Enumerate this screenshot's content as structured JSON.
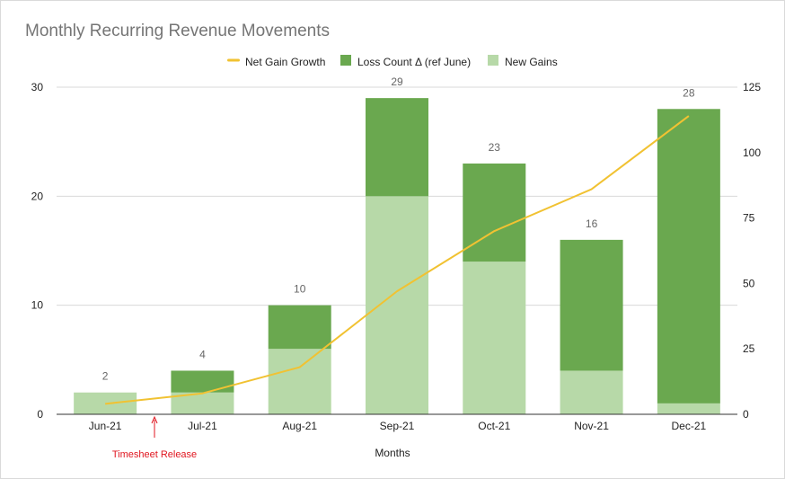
{
  "chart_data": {
    "type": "bar",
    "title": "Monthly Recurring Revenue Movements",
    "xlabel": "Months",
    "ylabel": "",
    "categories": [
      "Jun-21",
      "Jul-21",
      "Aug-21",
      "Sep-21",
      "Oct-21",
      "Nov-21",
      "Dec-21"
    ],
    "stacked": true,
    "ylim": [
      0,
      30
    ],
    "yticks": [
      0,
      10,
      20,
      30
    ],
    "y2lim": [
      0,
      125
    ],
    "y2ticks": [
      0,
      25,
      50,
      75,
      100,
      125
    ],
    "grid": true,
    "legend": "top-center",
    "legend_order": [
      "Net Gain Growth",
      "Loss Count Δ (ref June)",
      "New Gains"
    ],
    "series": [
      {
        "name": "New Gains",
        "type": "bar",
        "axis": "left",
        "color": "#b7d9a8",
        "values": [
          2,
          2,
          6,
          20,
          14,
          4,
          1
        ]
      },
      {
        "name": "Loss Count Δ (ref June)",
        "type": "bar",
        "axis": "left",
        "color": "#6aa84f",
        "values": [
          0,
          2,
          4,
          9,
          9,
          12,
          27
        ]
      },
      {
        "name": "Net Gain Growth",
        "type": "line",
        "axis": "right",
        "color": "#f1c232",
        "values": [
          4,
          8,
          18,
          47,
          70,
          86,
          114
        ]
      }
    ],
    "totals": [
      "2",
      "4",
      "10",
      "29",
      "23",
      "16",
      "28"
    ],
    "annotation": {
      "text": "Timesheet Release",
      "color": "#e0151f",
      "position": "between Jun-21 and Jul-21"
    }
  }
}
